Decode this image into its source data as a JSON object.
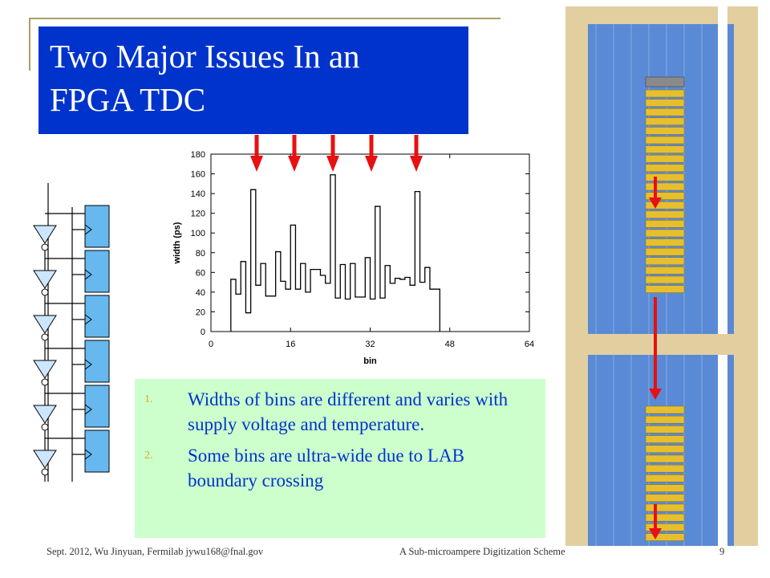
{
  "slide": {
    "title_line1": "Two Major Issues In an",
    "title_line2": "FPGA TDC"
  },
  "issues": [
    {
      "number": "1.",
      "text": "Widths of bins are different and varies with supply voltage and temperature."
    },
    {
      "number": "2.",
      "text": "Some bins are ultra-wide due to LAB boundary crossing"
    }
  ],
  "footer": {
    "left": "Sept. 2012, Wu Jinyuan, Fermilab jywu168@fnal.gov",
    "center": "A Sub-microampere Digitization Scheme",
    "page": "9"
  },
  "colors": {
    "title_bg": "#0033cc",
    "list_bg": "#ccffcc",
    "arrow": "#e81010",
    "chip_frame": "#e2cfa0",
    "chip_bg": "#5a8ad6",
    "chip_cell": "#e7bf2e"
  },
  "chart_data": {
    "type": "line",
    "style": "step",
    "xlabel": "bin",
    "ylabel": "width (ps)",
    "xlim": [
      0,
      64
    ],
    "ylim": [
      0,
      180
    ],
    "xticks": [
      "0",
      "16",
      "32",
      "48",
      "64"
    ],
    "yticks": [
      "0",
      "20",
      "40",
      "60",
      "80",
      "100",
      "120",
      "140",
      "160",
      "180"
    ],
    "bins": [
      4,
      5,
      6,
      7,
      8,
      9,
      10,
      11,
      12,
      13,
      14,
      15,
      16,
      17,
      18,
      19,
      20,
      21,
      22,
      23,
      24,
      25,
      26,
      27,
      28,
      29,
      30,
      31,
      32,
      33,
      34,
      35,
      36,
      37,
      38,
      39,
      40,
      41,
      42,
      43,
      44,
      45
    ],
    "widths": [
      53,
      38,
      71,
      19,
      144,
      47,
      69,
      36,
      36,
      81,
      51,
      43,
      108,
      43,
      69,
      40,
      63,
      63,
      57,
      49,
      159,
      34,
      68,
      33,
      69,
      35,
      35,
      75,
      33,
      127,
      34,
      67,
      49,
      54,
      53,
      55,
      47,
      142,
      50,
      65,
      43,
      43
    ],
    "arrow_count": 5
  }
}
